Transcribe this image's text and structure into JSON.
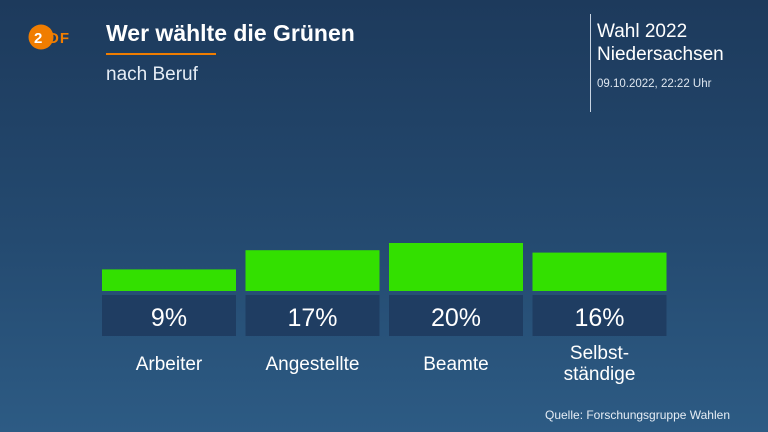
{
  "header": {
    "logo_text": "ZDF",
    "title": "Wer wählte die Grünen",
    "subtitle": "nach Beruf",
    "election_line1": "Wahl 2022",
    "election_line2": "Niedersachsen",
    "timestamp": "09.10.2022, 22:22 Uhr"
  },
  "footer": {
    "source": "Quelle: Forschungsgruppe Wahlen"
  },
  "colors": {
    "bar": "#33e000",
    "label_box": "#1f3d62",
    "logo_orange": "#f07d00"
  },
  "chart_data": {
    "type": "bar",
    "title": "Wer wählte die Grünen",
    "subtitle": "nach Beruf",
    "categories": [
      [
        "Arbeiter"
      ],
      [
        "Angestellte"
      ],
      [
        "Beamte"
      ],
      [
        "Selbst-",
        "ständige"
      ]
    ],
    "values": [
      9,
      17,
      20,
      16
    ],
    "value_labels": [
      "9%",
      "17%",
      "20%",
      "16%"
    ],
    "unit": "%",
    "ylim": [
      0,
      20
    ],
    "grid": false,
    "legend": "none"
  }
}
